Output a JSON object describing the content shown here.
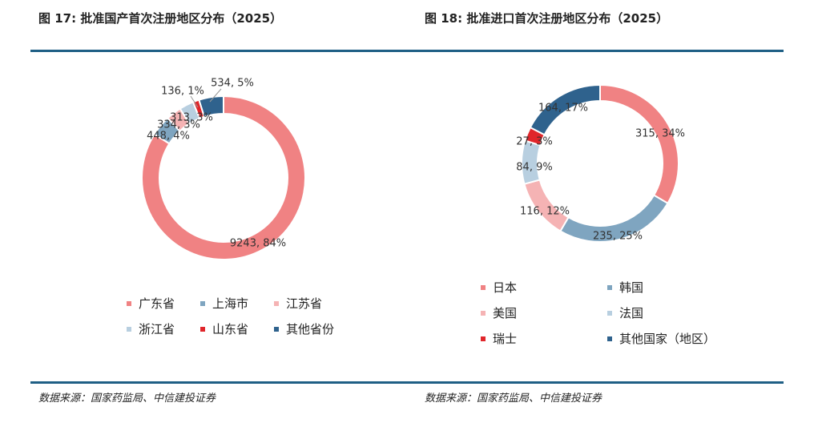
{
  "titles": {
    "left": "图 17:  批准国产首次注册地区分布（2025）",
    "right": "图 18:  批准进口首次注册地区分布（2025）"
  },
  "sources": {
    "left": "数据来源：国家药监局、中信建投证券",
    "right": "数据来源：国家药监局、中信建投证券"
  },
  "chart_data": [
    {
      "type": "pie",
      "donut": true,
      "title": "批准国产首次注册地区分布（2025）",
      "legend_position": "bottom",
      "categories": [
        "广东省",
        "上海市",
        "江苏省",
        "浙江省",
        "山东省",
        "其他省份"
      ],
      "values": [
        9243,
        448,
        334,
        313,
        136,
        534
      ],
      "percent": [
        84,
        4,
        3,
        3,
        1,
        5
      ],
      "data_labels": [
        "9243, 84%",
        "448, 4%",
        "334, 3%",
        "313, 3%",
        "136, 1%",
        "534, 5%"
      ],
      "colors": [
        "#f08283",
        "#7fa5c0",
        "#f5b3b4",
        "#b8cfe0",
        "#e0262b",
        "#2f628d"
      ]
    },
    {
      "type": "pie",
      "donut": true,
      "title": "批准进口首次注册地区分布（2025）",
      "legend_position": "bottom",
      "categories": [
        "日本",
        "韩国",
        "美国",
        "法国",
        "瑞士",
        "其他国家（地区）"
      ],
      "values": [
        315,
        235,
        116,
        84,
        27,
        164
      ],
      "percent": [
        34,
        25,
        12,
        9,
        3,
        17
      ],
      "data_labels": [
        "315, 34%",
        "235, 25%",
        "116, 12%",
        "84, 9%",
        "27, 3%",
        "164, 17%"
      ],
      "colors": [
        "#f08283",
        "#7fa5c0",
        "#f5b3b4",
        "#b8cfe0",
        "#e0262b",
        "#2f628d"
      ]
    }
  ]
}
